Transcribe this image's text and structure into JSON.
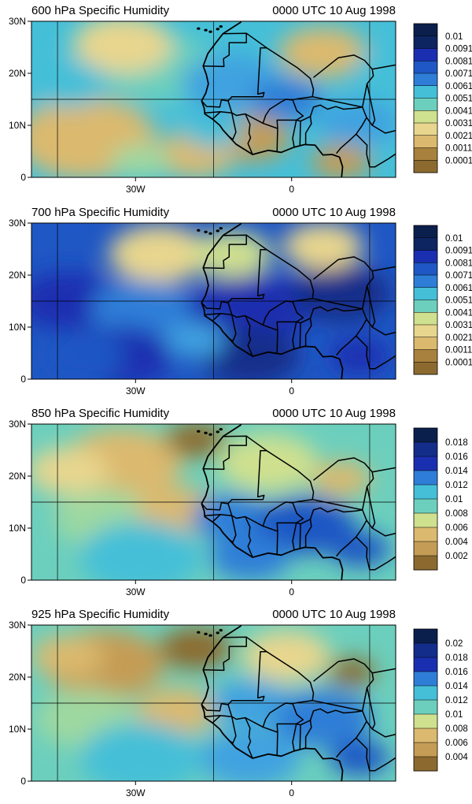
{
  "palette": [
    "#8c6a2f",
    "#a8813e",
    "#c49c55",
    "#dbb96e",
    "#e8d68e",
    "#cfe08f",
    "#9ed8a0",
    "#6ccfbd",
    "#45bfd8",
    "#3fa2e0",
    "#2e7ed7",
    "#1f57c4",
    "#1a2fb0",
    "#132d8a",
    "#0d2561",
    "#0b1f4c"
  ],
  "axes": {
    "y_ticks": [
      {
        "v": 30,
        "label": "30N"
      },
      {
        "v": 20,
        "label": "20N"
      },
      {
        "v": 10,
        "label": "10N"
      },
      {
        "v": 0,
        "label": "0"
      }
    ],
    "x_ticks": [
      {
        "v": -30,
        "label": "30W"
      },
      {
        "v": 0,
        "label": "0"
      }
    ],
    "lon_range": [
      -50,
      20
    ],
    "lat_range": [
      0,
      30
    ],
    "gridlines_lon": [
      -45,
      -15,
      15
    ],
    "gridlines_lat": [
      15
    ]
  },
  "chart_data": [
    {
      "type": "heatmap",
      "title": "600 hPa Specific Humidity",
      "time": "0000 UTC 10 Aug 1998",
      "colorbar_labels": [
        "0.01",
        "0.0091",
        "0.0081",
        "0.0071",
        "0.0061",
        "0.0051",
        "0.0041",
        "0.0031",
        "0.0021",
        "0.0011",
        "0.0001"
      ]
    },
    {
      "type": "heatmap",
      "title": "700 hPa Specific Humidity",
      "time": "0000 UTC 10 Aug 1998",
      "colorbar_labels": [
        "0.01",
        "0.0091",
        "0.0081",
        "0.0071",
        "0.0061",
        "0.0051",
        "0.0041",
        "0.0031",
        "0.0021",
        "0.0011",
        "0.0001"
      ]
    },
    {
      "type": "heatmap",
      "title": "850 hPa Specific Humidity",
      "time": "0000 UTC 10 Aug 1998",
      "colorbar_labels": [
        "0.018",
        "0.016",
        "0.014",
        "0.012",
        "0.01",
        "0.008",
        "0.006",
        "0.004",
        "0.002"
      ]
    },
    {
      "type": "heatmap",
      "title": "925 hPa Specific Humidity",
      "time": "0000 UTC 10 Aug 1998",
      "colorbar_labels": [
        "0.02",
        "0.018",
        "0.016",
        "0.014",
        "0.012",
        "0.01",
        "0.008",
        "0.006",
        "0.004"
      ]
    }
  ]
}
